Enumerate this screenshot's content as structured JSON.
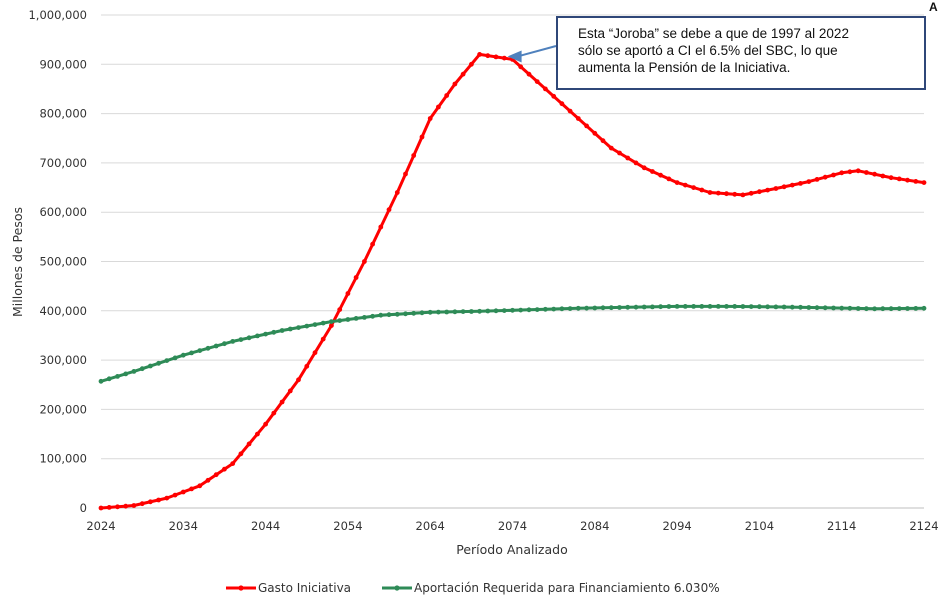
{
  "chart_data": {
    "type": "line",
    "title": "",
    "xlabel": "Período Analizado",
    "ylabel": "Millones de Pesos",
    "xlim": [
      2024,
      2124
    ],
    "ylim": [
      0,
      1000000
    ],
    "x_ticks": [
      2024,
      2034,
      2044,
      2054,
      2064,
      2074,
      2084,
      2094,
      2104,
      2114,
      2124
    ],
    "y_ticks": [
      0,
      100000,
      200000,
      300000,
      400000,
      500000,
      600000,
      700000,
      800000,
      900000,
      1000000
    ],
    "y_tick_labels": [
      "0",
      "100,000",
      "200,000",
      "300,000",
      "400,000",
      "500,000",
      "600,000",
      "700,000",
      "800,000",
      "900,000",
      "1,000,000"
    ],
    "grid": "horizontal",
    "legend_position": "bottom",
    "series": [
      {
        "name": "Gasto Iniciativa",
        "color": "#ff0000",
        "points": [
          [
            2024,
            0
          ],
          [
            2028,
            5000
          ],
          [
            2032,
            20000
          ],
          [
            2036,
            45000
          ],
          [
            2040,
            90000
          ],
          [
            2044,
            170000
          ],
          [
            2048,
            260000
          ],
          [
            2052,
            370000
          ],
          [
            2056,
            500000
          ],
          [
            2060,
            640000
          ],
          [
            2064,
            790000
          ],
          [
            2067,
            860000
          ],
          [
            2070,
            920000
          ],
          [
            2074,
            910000
          ],
          [
            2078,
            850000
          ],
          [
            2082,
            790000
          ],
          [
            2086,
            730000
          ],
          [
            2090,
            690000
          ],
          [
            2094,
            660000
          ],
          [
            2098,
            640000
          ],
          [
            2102,
            635000
          ],
          [
            2106,
            648000
          ],
          [
            2110,
            662000
          ],
          [
            2114,
            680000
          ],
          [
            2116,
            684000
          ],
          [
            2120,
            670000
          ],
          [
            2124,
            660000
          ]
        ]
      },
      {
        "name": "Aportación Requerida para Financiamiento 6.030%",
        "color": "#2e8b57",
        "points": [
          [
            2024,
            257000
          ],
          [
            2028,
            277000
          ],
          [
            2034,
            310000
          ],
          [
            2040,
            338000
          ],
          [
            2046,
            360000
          ],
          [
            2052,
            378000
          ],
          [
            2058,
            391000
          ],
          [
            2064,
            397000
          ],
          [
            2070,
            399000
          ],
          [
            2076,
            402000
          ],
          [
            2082,
            405000
          ],
          [
            2088,
            407000
          ],
          [
            2094,
            409000
          ],
          [
            2100,
            409000
          ],
          [
            2106,
            408000
          ],
          [
            2112,
            406000
          ],
          [
            2118,
            404000
          ],
          [
            2124,
            405000
          ]
        ]
      }
    ],
    "annotations": [
      {
        "text": "Esta “Joroba” se debe a que de 1997 al 2022 sólo se aportó a CI el 6.5% del SBC, lo que aumenta la Pensión de la Iniciativa.",
        "arrow_to": [
          2070,
          920000
        ]
      }
    ]
  },
  "callout": {
    "line1": "Esta “Joroba” se debe a que de 1997 al 2022",
    "line2": "sólo se aportó a CI el 6.5% del SBC, lo que",
    "line3": "aumenta la Pensión de la Iniciativa."
  },
  "corner_mark": "A"
}
